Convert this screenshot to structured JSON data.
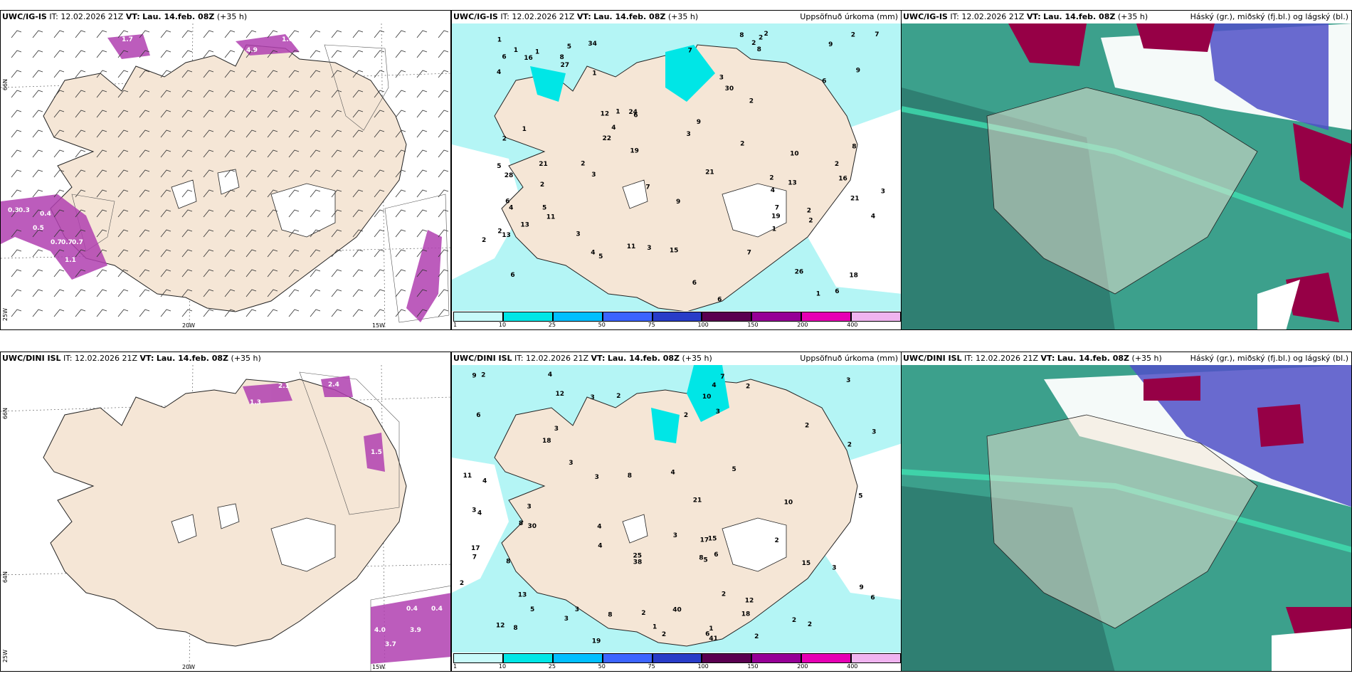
{
  "rows": [
    {
      "model": "UWC/IG-IS",
      "it_label": "IT:",
      "it": "12.02.2026 21Z",
      "vt_label": "VT:",
      "vt": "Lau. 14.feb. 08Z",
      "lead": "(+35 h)",
      "wind_labels": [
        "0.3",
        "0.3",
        "0.4",
        "0.5",
        "0.7",
        "0.7",
        "0.7",
        "1.1",
        "3.8",
        "1.0",
        "4.9",
        "1.6",
        "1.7",
        "0.7",
        "0.7"
      ],
      "lat_labels": [
        "66N",
        "65N"
      ],
      "lon_labels": [
        "20W",
        "15W",
        "25W"
      ],
      "precip_values": [
        "4",
        "16",
        "6",
        "5",
        "6",
        "26",
        "13",
        "8",
        "12",
        "6",
        "4",
        "5",
        "6",
        "18",
        "11",
        "8",
        "9",
        "21",
        "24",
        "11",
        "7",
        "9",
        "22",
        "21",
        "8",
        "8",
        "7",
        "28",
        "27",
        "10",
        "6",
        "7",
        "4",
        "3",
        "2",
        "2",
        "19",
        "21",
        "15",
        "13",
        "9",
        "2",
        "6",
        "3",
        "2",
        "3",
        "2",
        "1",
        "2",
        "2",
        "3",
        "1",
        "2",
        "2",
        "1",
        "1",
        "2",
        "1",
        "2",
        "1",
        "13",
        "1",
        "9",
        "6",
        "7",
        "1",
        "7",
        "5",
        "2",
        "2",
        "30",
        "34",
        "19",
        "16",
        "3",
        "2",
        "4",
        "4",
        "5",
        "6",
        "4",
        "3",
        "2"
      ]
    },
    {
      "model": "UWC/DINI ISL",
      "it_label": "IT:",
      "it": "12.02.2026 21Z",
      "vt_label": "VT:",
      "vt": "Lau. 14.feb. 08Z",
      "lead": "(+35 h)",
      "wind_labels": [
        "2.1",
        "1.3",
        "2.4",
        "1.5",
        "0.4",
        "4.0",
        "3.9",
        "3.7",
        "0.4"
      ],
      "lat_labels": [
        "66N",
        "64N"
      ],
      "lon_labels": [
        "20W",
        "15W",
        "25W"
      ],
      "precip_values": [
        "6",
        "4",
        "3",
        "5",
        "4",
        "8",
        "10",
        "15",
        "3",
        "4",
        "5",
        "11",
        "8",
        "25",
        "15",
        "9",
        "5",
        "7",
        "19",
        "18",
        "17",
        "17",
        "38",
        "8",
        "9",
        "7",
        "18",
        "4",
        "8",
        "6",
        "5",
        "4",
        "2",
        "6",
        "3",
        "4",
        "2",
        "2",
        "2",
        "3",
        "3",
        "2",
        "3",
        "3",
        "2",
        "3",
        "2",
        "1",
        "2",
        "2",
        "3",
        "2",
        "3",
        "2",
        "2",
        "2",
        "3",
        "21",
        "6",
        "4",
        "10",
        "12",
        "8",
        "13",
        "12",
        "3",
        "41",
        "30",
        "40",
        "3",
        "12",
        "8",
        "1",
        "2"
      ]
    }
  ],
  "panels": {
    "precip_title": "Uppsöfnuð úrkoma (mm)",
    "cloud_title": "Háský (gr.), miðský (fj.bl.) og lágský (bl.)"
  },
  "colorbar": {
    "ticks": [
      "1",
      "10",
      "25",
      "50",
      "75",
      "100",
      "150",
      "200",
      "400"
    ],
    "colors": [
      "#c8fafa",
      "#00e6e6",
      "#00bfff",
      "#3c64ff",
      "#283cc8",
      "#5a0050",
      "#960096",
      "#e600b4",
      "#f0b4f0"
    ]
  },
  "colors": {
    "land": "#f5e6d6",
    "precip_light": "#b4f5f5",
    "precip_mid": "#00e6e6",
    "cloud_low": "#3ca08c",
    "cloud_mid": "#5050c8",
    "cloud_high": "#960046"
  }
}
